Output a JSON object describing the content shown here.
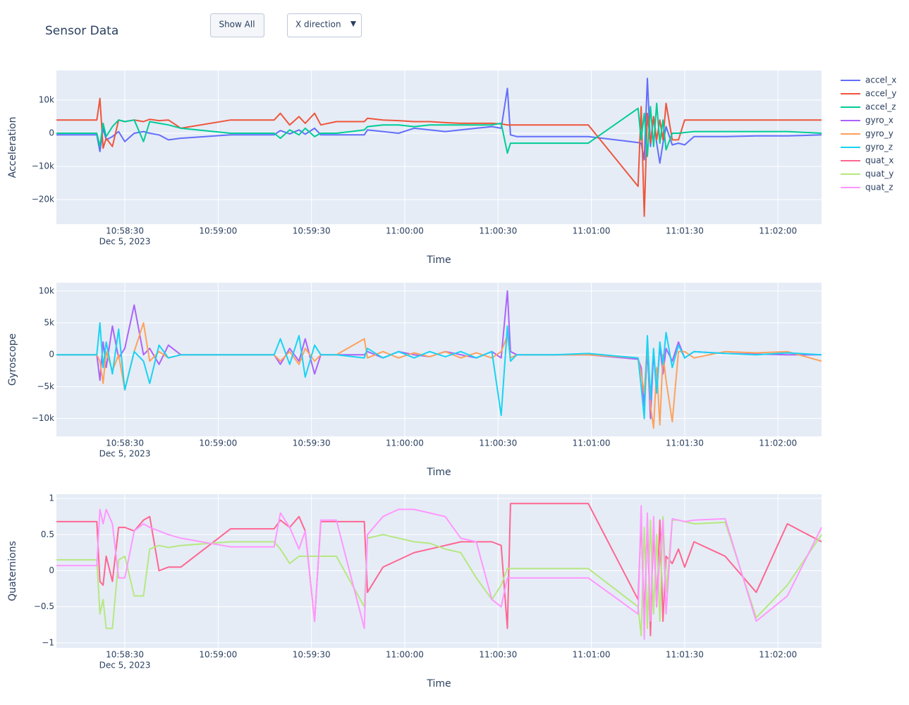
{
  "header": {
    "title": "Sensor Data",
    "button": "Show All",
    "dropdown": "X direction"
  },
  "chart_data": [
    {
      "type": "line",
      "ylabel": "Acceleration",
      "xlabel": "Time",
      "x_date_label": "Dec 5, 2023",
      "grid": true,
      "legend": "right",
      "x": [
        "2023-12-05 10:58:08",
        "2023-12-05 10:58:21",
        "2023-12-05 10:58:22",
        "2023-12-05 10:58:23",
        "2023-12-05 10:58:24",
        "2023-12-05 10:58:26",
        "2023-12-05 10:58:28",
        "2023-12-05 10:58:30",
        "2023-12-05 10:58:33",
        "2023-12-05 10:58:36",
        "2023-12-05 10:58:38",
        "2023-12-05 10:58:41",
        "2023-12-05 10:58:44",
        "2023-12-05 10:58:48",
        "2023-12-05 10:59:04",
        "2023-12-05 10:59:18",
        "2023-12-05 10:59:20",
        "2023-12-05 10:59:23",
        "2023-12-05 10:59:26",
        "2023-12-05 10:59:28",
        "2023-12-05 10:59:31",
        "2023-12-05 10:59:33",
        "2023-12-05 10:59:38",
        "2023-12-05 10:59:47",
        "2023-12-05 10:59:48",
        "2023-12-05 10:59:53",
        "2023-12-05 10:59:58",
        "2023-12-05 11:00:03",
        "2023-12-05 11:00:08",
        "2023-12-05 11:00:13",
        "2023-12-05 11:00:18",
        "2023-12-05 11:00:23",
        "2023-12-05 11:00:28",
        "2023-12-05 11:00:31",
        "2023-12-05 11:00:33",
        "2023-12-05 11:00:34",
        "2023-12-05 11:00:36",
        "2023-12-05 11:00:48",
        "2023-12-05 11:00:59",
        "2023-12-05 11:01:15",
        "2023-12-05 11:01:16",
        "2023-12-05 11:01:17",
        "2023-12-05 11:01:18",
        "2023-12-05 11:01:19",
        "2023-12-05 11:01:20",
        "2023-12-05 11:01:21",
        "2023-12-05 11:01:22",
        "2023-12-05 11:01:23",
        "2023-12-05 11:01:24",
        "2023-12-05 11:01:26",
        "2023-12-05 11:01:28",
        "2023-12-05 11:01:30",
        "2023-12-05 11:01:33",
        "2023-12-05 11:01:43",
        "2023-12-05 11:01:53",
        "2023-12-05 11:02:03",
        "2023-12-05 11:02:14"
      ],
      "xlim": [
        "2023-12-05 10:58:08",
        "2023-12-05 11:02:14"
      ],
      "xticks": [
        {
          "value": "2023-12-05 10:58:30",
          "label": "10:58:30"
        },
        {
          "value": "2023-12-05 10:59:00",
          "label": "10:59:00"
        },
        {
          "value": "2023-12-05 10:59:30",
          "label": "10:59:30"
        },
        {
          "value": "2023-12-05 11:00:00",
          "label": "11:00:00"
        },
        {
          "value": "2023-12-05 11:00:30",
          "label": "11:00:30"
        },
        {
          "value": "2023-12-05 11:01:00",
          "label": "11:01:00"
        },
        {
          "value": "2023-12-05 11:01:30",
          "label": "11:01:30"
        },
        {
          "value": "2023-12-05 11:02:00",
          "label": "11:02:00"
        }
      ],
      "ylim": [
        -27400,
        18900
      ],
      "yticks": [
        {
          "value": -20000,
          "label": "−20k"
        },
        {
          "value": -10000,
          "label": "−10k"
        },
        0,
        {
          "value": 10000,
          "label": "10k"
        }
      ],
      "series": [
        {
          "name": "accel_x",
          "color": "#636efa",
          "values": [
            -500,
            -500,
            -5500,
            1500,
            -2000,
            -1000,
            500,
            -2500,
            0,
            500,
            0,
            -500,
            -2000,
            -1500,
            -500,
            -500,
            800,
            -200,
            1000,
            -300,
            1500,
            -500,
            -500,
            -500,
            1000,
            500,
            0,
            1500,
            1000,
            500,
            1000,
            1500,
            2000,
            1500,
            13500,
            -500,
            -1000,
            -1000,
            -1000,
            -2800,
            -3000,
            -8000,
            16500,
            -4000,
            5000,
            -3000,
            -9000,
            -3000,
            2000,
            -3500,
            -3000,
            -3500,
            -1000,
            -1000,
            -800,
            -800,
            -500
          ]
        },
        {
          "name": "accel_y",
          "color": "#ef553b",
          "values": [
            4000,
            4000,
            10500,
            -4500,
            -1500,
            -4000,
            4000,
            3500,
            4000,
            3500,
            4200,
            3800,
            4000,
            1500,
            4000,
            4000,
            6000,
            2500,
            5000,
            3000,
            6000,
            2500,
            3500,
            3500,
            4500,
            4000,
            3800,
            3500,
            3500,
            3200,
            3000,
            3000,
            3000,
            2800,
            2500,
            2500,
            2500,
            2500,
            2500,
            -16000,
            8000,
            -25000,
            6000,
            -3000,
            5000,
            -2000,
            4000,
            -2000,
            9000,
            -2000,
            -2000,
            4000,
            4000,
            4000,
            4000,
            4000,
            4000
          ]
        },
        {
          "name": "accel_z",
          "color": "#00cc96",
          "values": [
            0,
            0,
            -4000,
            3000,
            -1000,
            2000,
            4000,
            3500,
            4000,
            -2500,
            3500,
            3000,
            2500,
            1500,
            0,
            0,
            -1500,
            1000,
            -500,
            1500,
            -1000,
            0,
            0,
            1000,
            2000,
            2500,
            2500,
            2000,
            2500,
            2500,
            2500,
            2500,
            2500,
            3000,
            -6000,
            -3000,
            -3000,
            -3000,
            -3000,
            7500,
            -2000,
            6000,
            -7000,
            8000,
            -4000,
            9000,
            -3000,
            4000,
            -5000,
            0,
            0,
            200,
            500,
            500,
            500,
            500,
            0
          ]
        }
      ]
    },
    {
      "type": "line",
      "ylabel": "Gyroscope",
      "xlabel": "Time",
      "x_date_label": "Dec 5, 2023",
      "grid": true,
      "legend": "right",
      "x": [
        "2023-12-05 10:58:08",
        "2023-12-05 10:58:21",
        "2023-12-05 10:58:22",
        "2023-12-05 10:58:23",
        "2023-12-05 10:58:24",
        "2023-12-05 10:58:26",
        "2023-12-05 10:58:28",
        "2023-12-05 10:58:30",
        "2023-12-05 10:58:33",
        "2023-12-05 10:58:36",
        "2023-12-05 10:58:38",
        "2023-12-05 10:58:41",
        "2023-12-05 10:58:44",
        "2023-12-05 10:58:48",
        "2023-12-05 10:59:04",
        "2023-12-05 10:59:18",
        "2023-12-05 10:59:20",
        "2023-12-05 10:59:23",
        "2023-12-05 10:59:26",
        "2023-12-05 10:59:28",
        "2023-12-05 10:59:31",
        "2023-12-05 10:59:33",
        "2023-12-05 10:59:38",
        "2023-12-05 10:59:47",
        "2023-12-05 10:59:48",
        "2023-12-05 10:59:53",
        "2023-12-05 10:59:58",
        "2023-12-05 11:00:03",
        "2023-12-05 11:00:08",
        "2023-12-05 11:00:13",
        "2023-12-05 11:00:18",
        "2023-12-05 11:00:23",
        "2023-12-05 11:00:28",
        "2023-12-05 11:00:31",
        "2023-12-05 11:00:33",
        "2023-12-05 11:00:34",
        "2023-12-05 11:00:36",
        "2023-12-05 11:00:48",
        "2023-12-05 11:00:59",
        "2023-12-05 11:01:15",
        "2023-12-05 11:01:16",
        "2023-12-05 11:01:17",
        "2023-12-05 11:01:18",
        "2023-12-05 11:01:19",
        "2023-12-05 11:01:20",
        "2023-12-05 11:01:21",
        "2023-12-05 11:01:22",
        "2023-12-05 11:01:23",
        "2023-12-05 11:01:24",
        "2023-12-05 11:01:26",
        "2023-12-05 11:01:28",
        "2023-12-05 11:01:30",
        "2023-12-05 11:01:33",
        "2023-12-05 11:01:43",
        "2023-12-05 11:01:53",
        "2023-12-05 11:02:03",
        "2023-12-05 11:02:14"
      ],
      "xlim": [
        "2023-12-05 10:58:08",
        "2023-12-05 11:02:14"
      ],
      "xticks": [
        {
          "value": "2023-12-05 10:58:30",
          "label": "10:58:30"
        },
        {
          "value": "2023-12-05 10:59:00",
          "label": "10:59:00"
        },
        {
          "value": "2023-12-05 10:59:30",
          "label": "10:59:30"
        },
        {
          "value": "2023-12-05 11:00:00",
          "label": "11:00:00"
        },
        {
          "value": "2023-12-05 11:00:30",
          "label": "11:00:30"
        },
        {
          "value": "2023-12-05 11:01:00",
          "label": "11:01:00"
        },
        {
          "value": "2023-12-05 11:01:30",
          "label": "11:01:30"
        },
        {
          "value": "2023-12-05 11:02:00",
          "label": "11:02:00"
        }
      ],
      "ylim": [
        -12800,
        11300
      ],
      "yticks": [
        {
          "value": -10000,
          "label": "−10k"
        },
        {
          "value": -5000,
          "label": "−5k"
        },
        0,
        {
          "value": 5000,
          "label": "5k"
        },
        {
          "value": 10000,
          "label": "10k"
        }
      ],
      "series": [
        {
          "name": "gyro_x",
          "color": "#ab63fa",
          "values": [
            0,
            0,
            -4000,
            2000,
            -2000,
            4500,
            -500,
            1000,
            7800,
            0,
            1000,
            -1500,
            1500,
            0,
            0,
            0,
            -1500,
            1000,
            -1000,
            2500,
            -3000,
            0,
            0,
            0,
            500,
            -500,
            500,
            0,
            -300,
            500,
            0,
            -500,
            500,
            -500,
            10000,
            500,
            0,
            0,
            0,
            -700,
            -2000,
            -8000,
            1000,
            -10000,
            500,
            -6000,
            1500,
            -3000,
            1000,
            -1000,
            2000,
            -500,
            500,
            200,
            100,
            0,
            0
          ]
        },
        {
          "name": "gyro_y",
          "color": "#ffa15a",
          "values": [
            0,
            0,
            -1000,
            -4500,
            500,
            -2500,
            0,
            -5500,
            500,
            5000,
            -1000,
            500,
            -500,
            0,
            0,
            0,
            -1000,
            500,
            -1500,
            1000,
            -1000,
            0,
            0,
            2500,
            -500,
            500,
            -500,
            300,
            -300,
            500,
            -500,
            300,
            -500,
            500,
            3000,
            -500,
            0,
            0,
            0,
            -500,
            -3000,
            -6000,
            2000,
            -8000,
            -11500,
            -2000,
            -11000,
            0,
            -4000,
            -10500,
            500,
            500,
            -500,
            500,
            300,
            500,
            -1000
          ]
        },
        {
          "name": "gyro_z",
          "color": "#19d3f3",
          "values": [
            0,
            0,
            5000,
            -2000,
            2000,
            -3000,
            4000,
            -5500,
            500,
            -1000,
            -4500,
            1500,
            -500,
            0,
            0,
            0,
            2500,
            -1500,
            3000,
            -3500,
            1500,
            0,
            0,
            -500,
            1000,
            -500,
            500,
            -500,
            500,
            -300,
            500,
            -500,
            500,
            -9500,
            4500,
            -1000,
            0,
            0,
            200,
            -500,
            -5000,
            -10000,
            3000,
            -7000,
            1000,
            -6000,
            2000,
            -1500,
            3500,
            -2000,
            1500,
            -500,
            500,
            200,
            0,
            300,
            0
          ]
        }
      ]
    },
    {
      "type": "line",
      "ylabel": "Quaternions",
      "xlabel": "Time",
      "x_date_label": "Dec 5, 2023",
      "grid": true,
      "legend": "right",
      "x": [
        "2023-12-05 10:58:08",
        "2023-12-05 10:58:21",
        "2023-12-05 10:58:22",
        "2023-12-05 10:58:23",
        "2023-12-05 10:58:24",
        "2023-12-05 10:58:26",
        "2023-12-05 10:58:28",
        "2023-12-05 10:58:30",
        "2023-12-05 10:58:33",
        "2023-12-05 10:58:36",
        "2023-12-05 10:58:38",
        "2023-12-05 10:58:41",
        "2023-12-05 10:58:44",
        "2023-12-05 10:58:48",
        "2023-12-05 10:59:04",
        "2023-12-05 10:59:18",
        "2023-12-05 10:59:20",
        "2023-12-05 10:59:23",
        "2023-12-05 10:59:26",
        "2023-12-05 10:59:28",
        "2023-12-05 10:59:31",
        "2023-12-05 10:59:33",
        "2023-12-05 10:59:38",
        "2023-12-05 10:59:47",
        "2023-12-05 10:59:48",
        "2023-12-05 10:59:53",
        "2023-12-05 10:59:58",
        "2023-12-05 11:00:03",
        "2023-12-05 11:00:08",
        "2023-12-05 11:00:13",
        "2023-12-05 11:00:18",
        "2023-12-05 11:00:23",
        "2023-12-05 11:00:28",
        "2023-12-05 11:00:31",
        "2023-12-05 11:00:33",
        "2023-12-05 11:00:34",
        "2023-12-05 11:00:36",
        "2023-12-05 11:00:48",
        "2023-12-05 11:00:59",
        "2023-12-05 11:01:15",
        "2023-12-05 11:01:16",
        "2023-12-05 11:01:17",
        "2023-12-05 11:01:18",
        "2023-12-05 11:01:19",
        "2023-12-05 11:01:20",
        "2023-12-05 11:01:21",
        "2023-12-05 11:01:22",
        "2023-12-05 11:01:23",
        "2023-12-05 11:01:24",
        "2023-12-05 11:01:26",
        "2023-12-05 11:01:28",
        "2023-12-05 11:01:30",
        "2023-12-05 11:01:33",
        "2023-12-05 11:01:43",
        "2023-12-05 11:01:53",
        "2023-12-05 11:02:03",
        "2023-12-05 11:02:14"
      ],
      "xlim": [
        "2023-12-05 10:58:08",
        "2023-12-05 11:02:14"
      ],
      "xticks": [
        {
          "value": "2023-12-05 10:58:30",
          "label": "10:58:30"
        },
        {
          "value": "2023-12-05 10:59:00",
          "label": "10:59:00"
        },
        {
          "value": "2023-12-05 10:59:30",
          "label": "10:59:30"
        },
        {
          "value": "2023-12-05 11:00:00",
          "label": "11:00:00"
        },
        {
          "value": "2023-12-05 11:00:30",
          "label": "11:00:30"
        },
        {
          "value": "2023-12-05 11:01:00",
          "label": "11:01:00"
        },
        {
          "value": "2023-12-05 11:01:30",
          "label": "11:01:30"
        },
        {
          "value": "2023-12-05 11:02:00",
          "label": "11:02:00"
        }
      ],
      "ylim": [
        -1.07,
        1.06
      ],
      "yticks": [
        {
          "value": -1,
          "label": "−1"
        },
        {
          "value": -0.5,
          "label": "−0.5"
        },
        0,
        0.5,
        1
      ],
      "series": [
        {
          "name": "quat_x",
          "color": "#ff6692",
          "values": [
            0.68,
            0.68,
            -0.15,
            -0.2,
            0.2,
            -0.15,
            0.6,
            0.6,
            0.55,
            0.7,
            0.75,
            0.0,
            0.05,
            0.05,
            0.58,
            0.58,
            0.7,
            0.6,
            0.75,
            0.55,
            -0.7,
            0.68,
            0.68,
            0.68,
            -0.3,
            0.05,
            0.15,
            0.25,
            0.3,
            0.35,
            0.4,
            0.4,
            0.4,
            0.35,
            -0.8,
            0.93,
            0.93,
            0.93,
            0.93,
            -0.4,
            0.7,
            -0.7,
            0.7,
            -0.9,
            0.6,
            -0.5,
            0.7,
            -0.7,
            0.2,
            0.1,
            0.3,
            0.05,
            0.4,
            0.2,
            -0.3,
            0.65,
            0.4
          ]
        },
        {
          "name": "quat_y",
          "color": "#b6e880",
          "values": [
            0.15,
            0.15,
            -0.6,
            -0.4,
            -0.8,
            -0.8,
            0.15,
            0.2,
            -0.35,
            -0.35,
            0.3,
            0.35,
            0.32,
            0.35,
            0.4,
            0.4,
            0.3,
            0.1,
            0.2,
            0.2,
            0.2,
            0.2,
            0.2,
            -0.5,
            0.45,
            0.5,
            0.45,
            0.4,
            0.38,
            0.3,
            0.25,
            -0.1,
            -0.4,
            -0.2,
            0.03,
            0.03,
            0.03,
            0.03,
            0.03,
            -0.5,
            -0.9,
            0.6,
            -0.8,
            0.7,
            -0.6,
            0.5,
            -0.7,
            0.75,
            -0.3,
            0.7,
            0.7,
            0.68,
            0.65,
            0.67,
            -0.65,
            -0.2,
            0.5
          ]
        },
        {
          "name": "quat_z",
          "color": "#ff97ff",
          "values": [
            0.07,
            0.07,
            0.85,
            0.65,
            0.85,
            0.65,
            -0.1,
            -0.1,
            0.55,
            0.65,
            0.6,
            0.55,
            0.5,
            0.45,
            0.33,
            0.33,
            0.8,
            0.6,
            0.3,
            0.55,
            -0.7,
            0.7,
            0.7,
            -0.8,
            0.5,
            0.75,
            0.85,
            0.85,
            0.8,
            0.75,
            0.45,
            0.4,
            -0.4,
            -0.5,
            -0.1,
            -0.1,
            -0.1,
            -0.1,
            -0.1,
            -0.6,
            0.9,
            -0.95,
            0.8,
            -0.7,
            0.75,
            -0.5,
            0.2,
            0.7,
            -0.6,
            0.72,
            0.7,
            0.68,
            0.7,
            0.72,
            -0.7,
            -0.35,
            0.6
          ]
        }
      ]
    }
  ]
}
